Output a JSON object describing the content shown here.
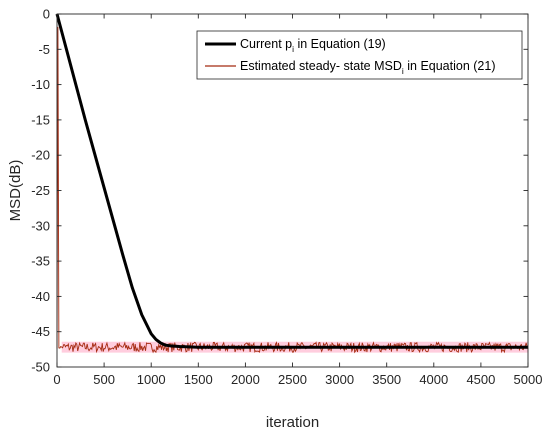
{
  "chart_data": {
    "type": "line",
    "xlabel": "iteration",
    "ylabel": "MSD(dB)",
    "xlim": [
      0,
      5000
    ],
    "ylim": [
      -50,
      0
    ],
    "xticks": [
      0,
      500,
      1000,
      1500,
      2000,
      2500,
      3000,
      3500,
      4000,
      4500,
      5000
    ],
    "yticks": [
      0,
      -5,
      -10,
      -15,
      -20,
      -25,
      -30,
      -35,
      -40,
      -45,
      -50
    ],
    "grid": false,
    "legend_position": "top-right",
    "colors": {
      "current": "#000000",
      "estimated": "#a52a10",
      "estimated_band": "#ff6fa0"
    },
    "series": [
      {
        "name": "Current p_i in Equation (19)",
        "legend": {
          "main": "Current p",
          "sub": "i",
          "rest": " in Equation (19)"
        },
        "x": [
          0,
          100,
          200,
          300,
          400,
          500,
          600,
          700,
          800,
          900,
          1000,
          1050,
          1100,
          1150,
          1200,
          1300,
          1500,
          2000,
          2500,
          3000,
          3500,
          4000,
          4500,
          5000
        ],
        "y": [
          0,
          -5,
          -10,
          -15,
          -19.8,
          -24.6,
          -29.4,
          -34.2,
          -38.8,
          -42.6,
          -45.3,
          -46.1,
          -46.6,
          -46.9,
          -47.0,
          -47.1,
          -47.2,
          -47.2,
          -47.2,
          -47.2,
          -47.2,
          -47.2,
          -47.2,
          -47.2
        ]
      },
      {
        "name": "Estimated steady- state MSD_i in Equation (21)",
        "legend": {
          "main": "Estimated steady- state MSD",
          "sub": "i",
          "rest": " in Equation (21)"
        },
        "x": [
          0,
          10,
          20,
          30,
          40,
          5000
        ],
        "y": [
          -47.2,
          -2.0,
          -47.2,
          -47.2,
          -47.2,
          -47.2
        ],
        "noise_amplitude_db": 0.7
      }
    ]
  }
}
